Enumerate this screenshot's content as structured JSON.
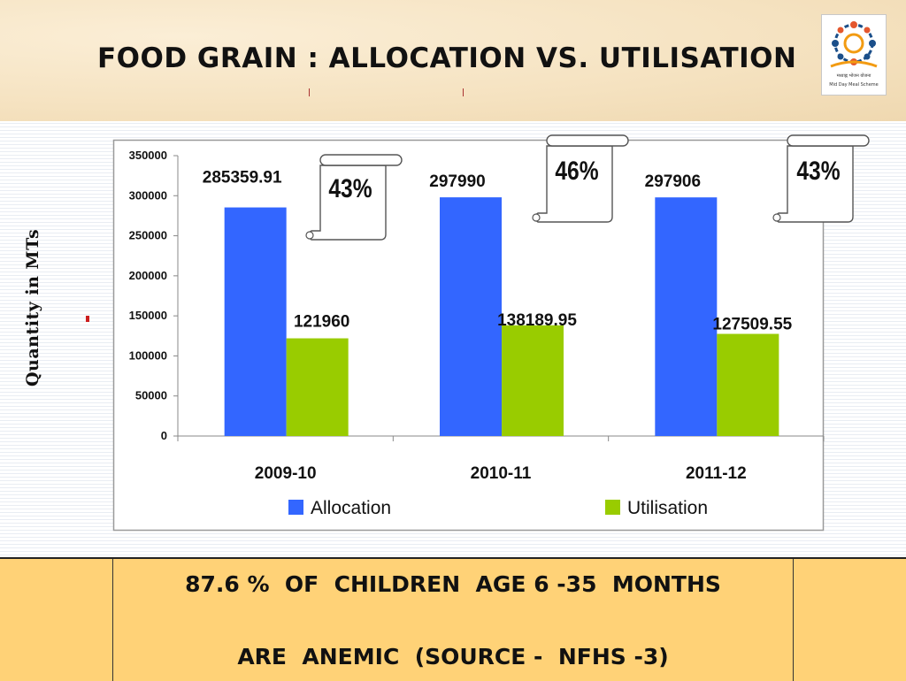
{
  "slide": {
    "title": "Food Grain : Allocation Vs. Utilisation",
    "y_axis_label": "Quantity in MTs",
    "logo_caption": "Mid Day Meal Scheme",
    "logo_script": "मध्याह्न भोजन योजना"
  },
  "chart_data": {
    "type": "bar",
    "categories": [
      "2009-10",
      "2010-11",
      "2011-12"
    ],
    "series": [
      {
        "name": "Allocation",
        "color": "#3366ff",
        "values": [
          285359.91,
          297990,
          297906
        ],
        "labels": [
          "285359.91",
          "297990",
          "297906"
        ]
      },
      {
        "name": "Utilisation",
        "color": "#99cc00",
        "values": [
          121960,
          138189.95,
          127509.55
        ],
        "labels": [
          "121960",
          "138189.95",
          "127509.55"
        ]
      }
    ],
    "ylim": [
      0,
      350000
    ],
    "yticks": [
      "0",
      "50000",
      "100000",
      "150000",
      "200000",
      "250000",
      "300000",
      "350000"
    ],
    "grid": false,
    "legend": "bottom",
    "annotations": [
      "43%",
      "46%",
      "43%"
    ]
  },
  "footer": {
    "line1": "87.6 %  of  children  age 6 -35  months",
    "line2": "are  anemic  (Source -  NFHS -3)"
  }
}
